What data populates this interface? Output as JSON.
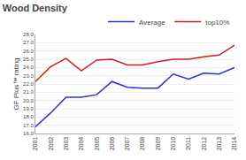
{
  "chart_data": {
    "type": "line",
    "title": "Wood Density",
    "ylabel": "GF Plus™ rating",
    "x": [
      2001,
      2002,
      2003,
      2004,
      2005,
      2006,
      2007,
      2008,
      2009,
      2010,
      2011,
      2012,
      2013,
      2014
    ],
    "series": [
      {
        "name": "Average",
        "color": "#3030cc",
        "values": [
          16.8,
          18.5,
          20.4,
          20.4,
          20.7,
          22.3,
          21.6,
          21.5,
          21.5,
          23.2,
          22.6,
          23.3,
          23.2,
          24.0
        ]
      },
      {
        "name": "top10%",
        "color": "#cc2020",
        "values": [
          22.3,
          24.1,
          25.1,
          23.6,
          24.9,
          25.0,
          24.3,
          24.3,
          24.7,
          25.0,
          25.0,
          25.3,
          25.5,
          26.7
        ]
      }
    ],
    "xlim": [
      2001,
      2014
    ],
    "xticks": [
      2001,
      2002,
      2003,
      2004,
      2005,
      2006,
      2007,
      2008,
      2009,
      2010,
      2011,
      2012,
      2013,
      2014
    ],
    "ylim": [
      16.0,
      28.0
    ],
    "yticks": [
      {
        "value": 16,
        "label": "16.0"
      },
      {
        "value": 17,
        "label": "17.0"
      },
      {
        "value": 18,
        "label": "18.0"
      },
      {
        "value": 19,
        "label": "19.0"
      },
      {
        "value": 20,
        "label": "20.0"
      },
      {
        "value": 21,
        "label": "21.0"
      },
      {
        "value": 22,
        "label": "22.0"
      },
      {
        "value": 23,
        "label": "23.0"
      },
      {
        "value": 24,
        "label": "24.0"
      },
      {
        "value": 25,
        "label": "25.0"
      },
      {
        "value": 26,
        "label": "26.0"
      },
      {
        "value": 27,
        "label": "27.0"
      },
      {
        "value": 28,
        "label": "28.0"
      }
    ],
    "grid": "y",
    "legend": "top"
  }
}
